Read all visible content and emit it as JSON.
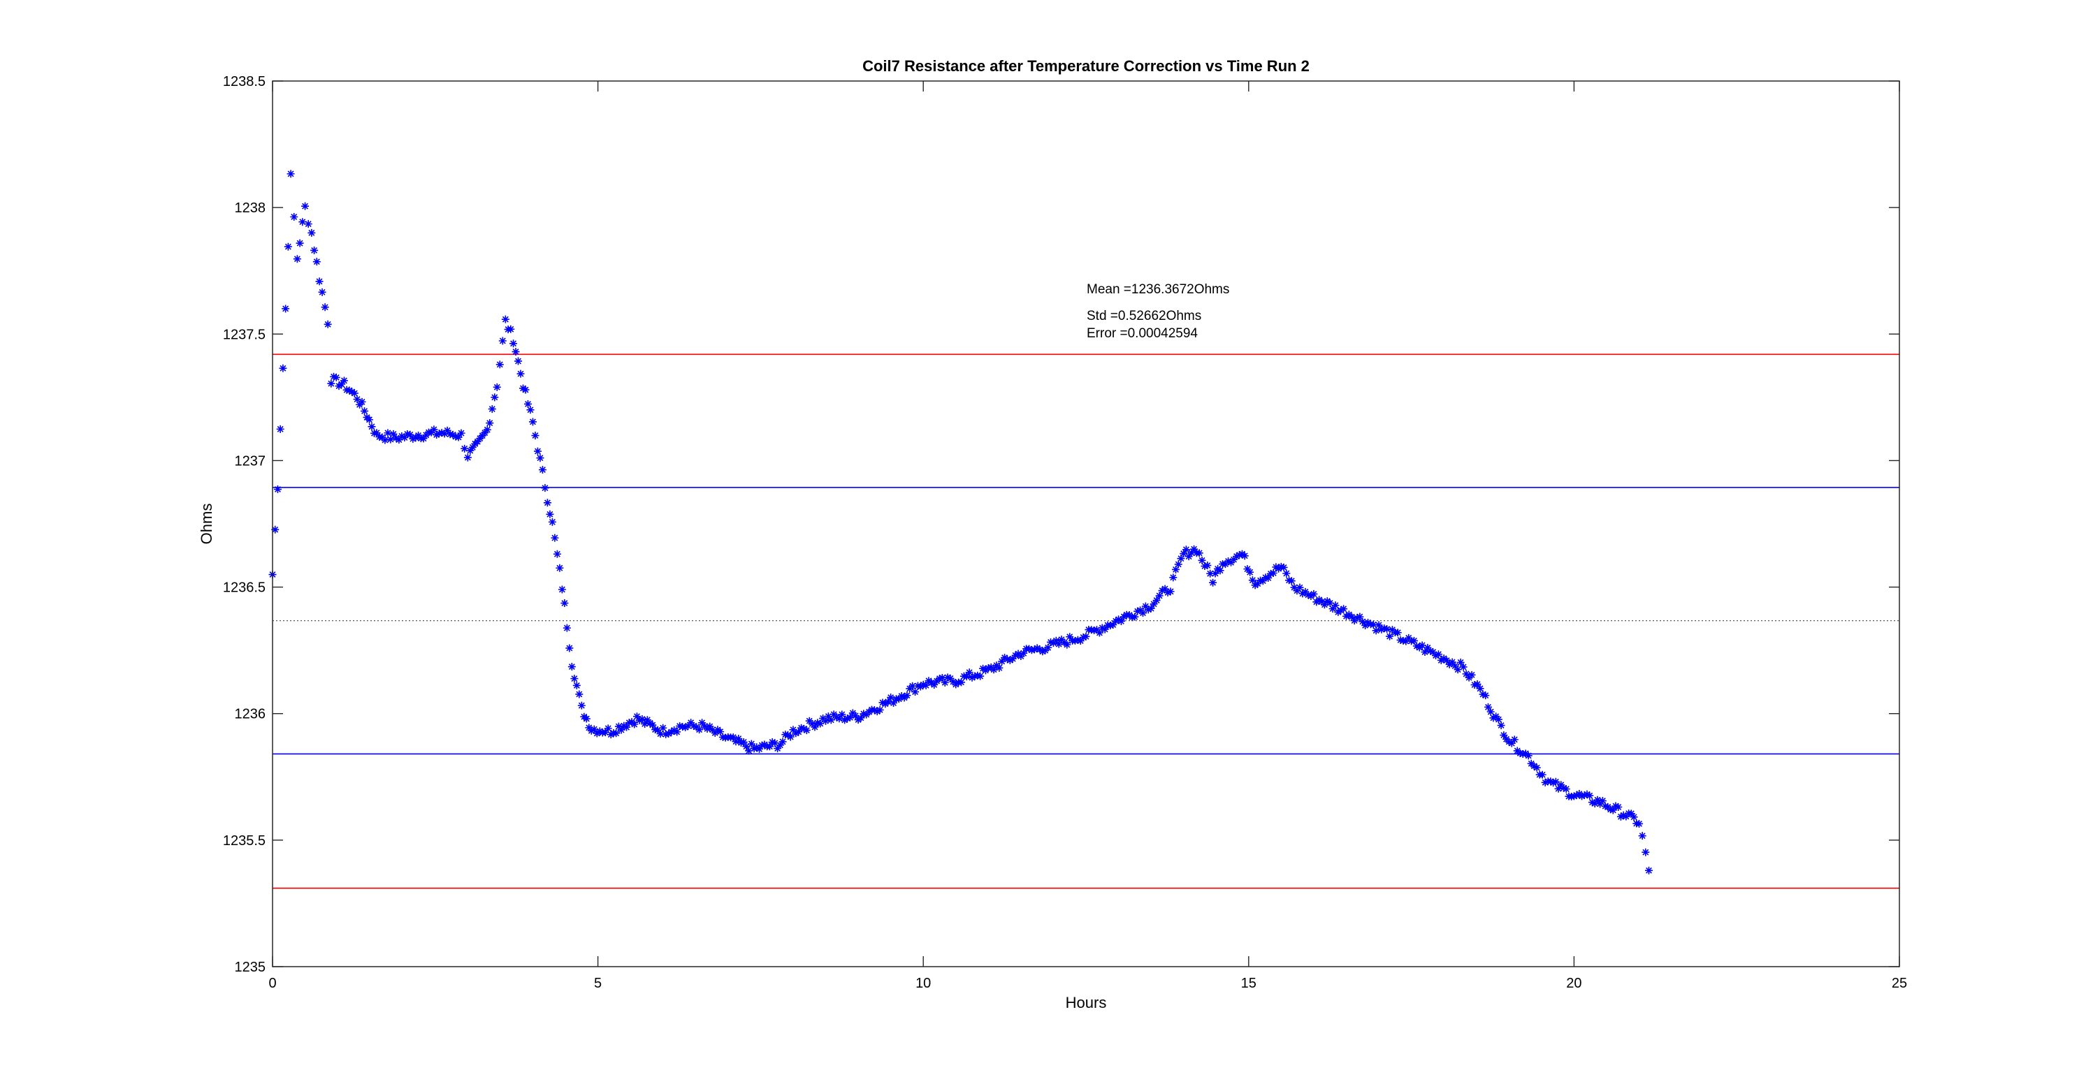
{
  "chart_data": {
    "type": "scatter",
    "title": "Coil7 Resistance after Temperature Correction vs Time Run 2",
    "xlabel": "Hours",
    "ylabel": "Ohms",
    "xlim": [
      0,
      25
    ],
    "ylim": [
      1235,
      1238.5
    ],
    "xticks": [
      0,
      5,
      10,
      15,
      20,
      25
    ],
    "yticks": [
      1235,
      1235.5,
      1236,
      1236.5,
      1237,
      1237.5,
      1238,
      1238.5
    ],
    "grid": false,
    "marker": "*",
    "colors": {
      "points": "#0000ff",
      "std_lines": "#0000ff",
      "limit_lines": "#ff0000",
      "mean_line": "#444444"
    },
    "annotations": [
      "Mean =1236.3672Ohms",
      "Std =0.52662Ohms",
      "Error =0.00042594"
    ],
    "reference_lines": [
      {
        "kind": "mean",
        "y": 1236.3672
      },
      {
        "kind": "mean+std",
        "y": 1236.8938
      },
      {
        "kind": "mean-std",
        "y": 1235.8406
      },
      {
        "kind": "upper",
        "y": 1237.42
      },
      {
        "kind": "lower",
        "y": 1235.31
      }
    ],
    "keypoints": [
      [
        0.0,
        1236.55
      ],
      [
        0.08,
        1236.9
      ],
      [
        0.2,
        1237.6
      ],
      [
        0.28,
        1238.12
      ],
      [
        0.38,
        1237.8
      ],
      [
        0.5,
        1238.0
      ],
      [
        0.6,
        1237.9
      ],
      [
        0.72,
        1237.72
      ],
      [
        0.85,
        1237.55
      ],
      [
        0.9,
        1237.32
      ],
      [
        1.1,
        1237.3
      ],
      [
        1.3,
        1237.25
      ],
      [
        1.45,
        1237.18
      ],
      [
        1.6,
        1237.1
      ],
      [
        1.9,
        1237.09
      ],
      [
        2.2,
        1237.1
      ],
      [
        2.6,
        1237.11
      ],
      [
        2.9,
        1237.1
      ],
      [
        3.0,
        1237.02
      ],
      [
        3.15,
        1237.06
      ],
      [
        3.3,
        1237.12
      ],
      [
        3.45,
        1237.3
      ],
      [
        3.58,
        1237.55
      ],
      [
        3.7,
        1237.48
      ],
      [
        3.85,
        1237.3
      ],
      [
        4.0,
        1237.15
      ],
      [
        4.15,
        1236.95
      ],
      [
        4.3,
        1236.75
      ],
      [
        4.45,
        1236.5
      ],
      [
        4.6,
        1236.2
      ],
      [
        4.75,
        1236.02
      ],
      [
        4.9,
        1235.94
      ],
      [
        5.2,
        1235.93
      ],
      [
        5.6,
        1235.98
      ],
      [
        6.0,
        1235.93
      ],
      [
        6.3,
        1235.95
      ],
      [
        6.6,
        1235.95
      ],
      [
        7.0,
        1235.9
      ],
      [
        7.4,
        1235.86
      ],
      [
        7.8,
        1235.88
      ],
      [
        8.0,
        1235.93
      ],
      [
        8.5,
        1235.98
      ],
      [
        9.0,
        1235.99
      ],
      [
        9.5,
        1236.05
      ],
      [
        10.0,
        1236.12
      ],
      [
        10.5,
        1236.13
      ],
      [
        11.0,
        1236.17
      ],
      [
        11.5,
        1236.24
      ],
      [
        12.0,
        1236.27
      ],
      [
        12.5,
        1236.31
      ],
      [
        13.0,
        1236.37
      ],
      [
        13.5,
        1236.43
      ],
      [
        13.8,
        1236.5
      ],
      [
        14.0,
        1236.63
      ],
      [
        14.2,
        1236.65
      ],
      [
        14.45,
        1236.53
      ],
      [
        14.6,
        1236.6
      ],
      [
        14.9,
        1236.63
      ],
      [
        15.1,
        1236.52
      ],
      [
        15.3,
        1236.55
      ],
      [
        15.5,
        1236.58
      ],
      [
        15.7,
        1236.5
      ],
      [
        16.0,
        1236.46
      ],
      [
        16.5,
        1236.4
      ],
      [
        17.0,
        1236.34
      ],
      [
        17.5,
        1236.28
      ],
      [
        18.0,
        1236.22
      ],
      [
        18.3,
        1236.18
      ],
      [
        18.6,
        1236.08
      ],
      [
        18.8,
        1235.98
      ],
      [
        19.0,
        1235.9
      ],
      [
        19.3,
        1235.83
      ],
      [
        19.6,
        1235.73
      ],
      [
        20.0,
        1235.68
      ],
      [
        20.4,
        1235.65
      ],
      [
        20.8,
        1235.6
      ],
      [
        21.0,
        1235.57
      ],
      [
        21.1,
        1235.45
      ],
      [
        21.15,
        1235.38
      ]
    ]
  }
}
